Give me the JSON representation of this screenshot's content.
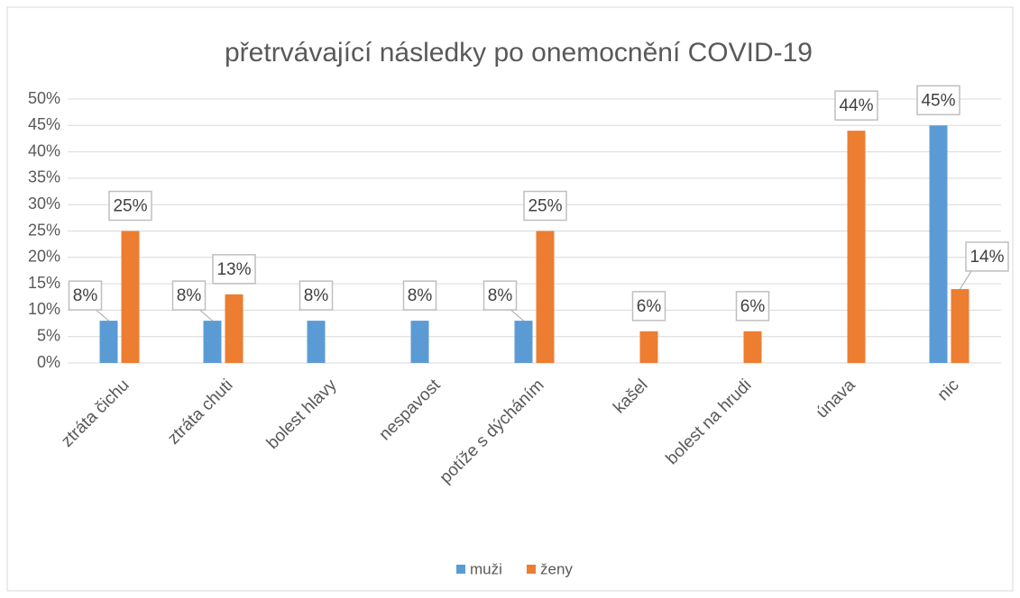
{
  "chart_data": {
    "type": "bar",
    "title": "přetrvávající následky po onemocnění COVID-19",
    "categories": [
      "ztráta čichu",
      "ztráta chuti",
      "bolest hlavy",
      "nespavost",
      "potíže s dýcháním",
      "kašel",
      "bolest na hrudi",
      "únava",
      "nic"
    ],
    "series": [
      {
        "name": "muži",
        "color": "#5b9bd5",
        "values": [
          8,
          8,
          8,
          8,
          8,
          null,
          null,
          null,
          45
        ],
        "value_labels": [
          "8%",
          "8%",
          "8%",
          "8%",
          "8%",
          null,
          null,
          null,
          "45%"
        ]
      },
      {
        "name": "ženy",
        "color": "#ed7d31",
        "values": [
          25,
          13,
          null,
          null,
          25,
          6,
          6,
          44,
          14
        ],
        "value_labels": [
          "25%",
          "13%",
          null,
          null,
          "25%",
          "6%",
          "6%",
          "44%",
          "14%"
        ]
      }
    ],
    "ylim": [
      0,
      50
    ],
    "yticks": [
      {
        "value": 0,
        "label": "0%"
      },
      {
        "value": 5,
        "label": "5%"
      },
      {
        "value": 10,
        "label": "10%"
      },
      {
        "value": 15,
        "label": "15%"
      },
      {
        "value": 20,
        "label": "20%"
      },
      {
        "value": 25,
        "label": "25%"
      },
      {
        "value": 30,
        "label": "30%"
      },
      {
        "value": 35,
        "label": "35%"
      },
      {
        "value": 40,
        "label": "40%"
      },
      {
        "value": 45,
        "label": "45%"
      },
      {
        "value": 50,
        "label": "50%"
      }
    ],
    "grid": true,
    "legend": "bottom"
  }
}
